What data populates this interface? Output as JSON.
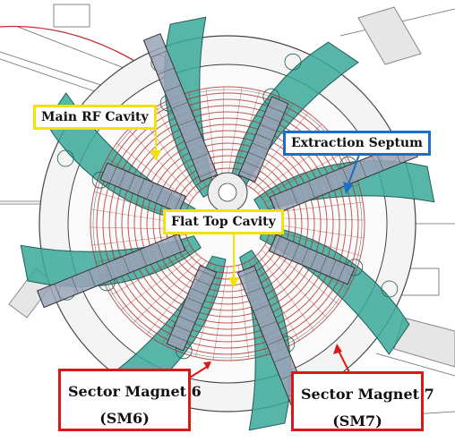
{
  "labels": {
    "main_rf_cavity": "Main RF Cavity",
    "extraction_septum": "Extraction Septum",
    "flat_top_cavity": "Flat Top Cavity",
    "sector_magnet_6_line1": "Sector Magnet 6",
    "sector_magnet_6_line2": "(SM6)",
    "sector_magnet_7_line1": "Sector Magnet 7",
    "sector_magnet_7_line2": "(SM7)"
  },
  "colors": {
    "magnet_fill": "#3aa89a",
    "coil_red": "#b0302c",
    "callout_yellow": "#f2e20a",
    "callout_blue": "#1c6fc7",
    "callout_red": "#d91818",
    "line_drawing": "#555555"
  },
  "sector_magnet_count": 8
}
